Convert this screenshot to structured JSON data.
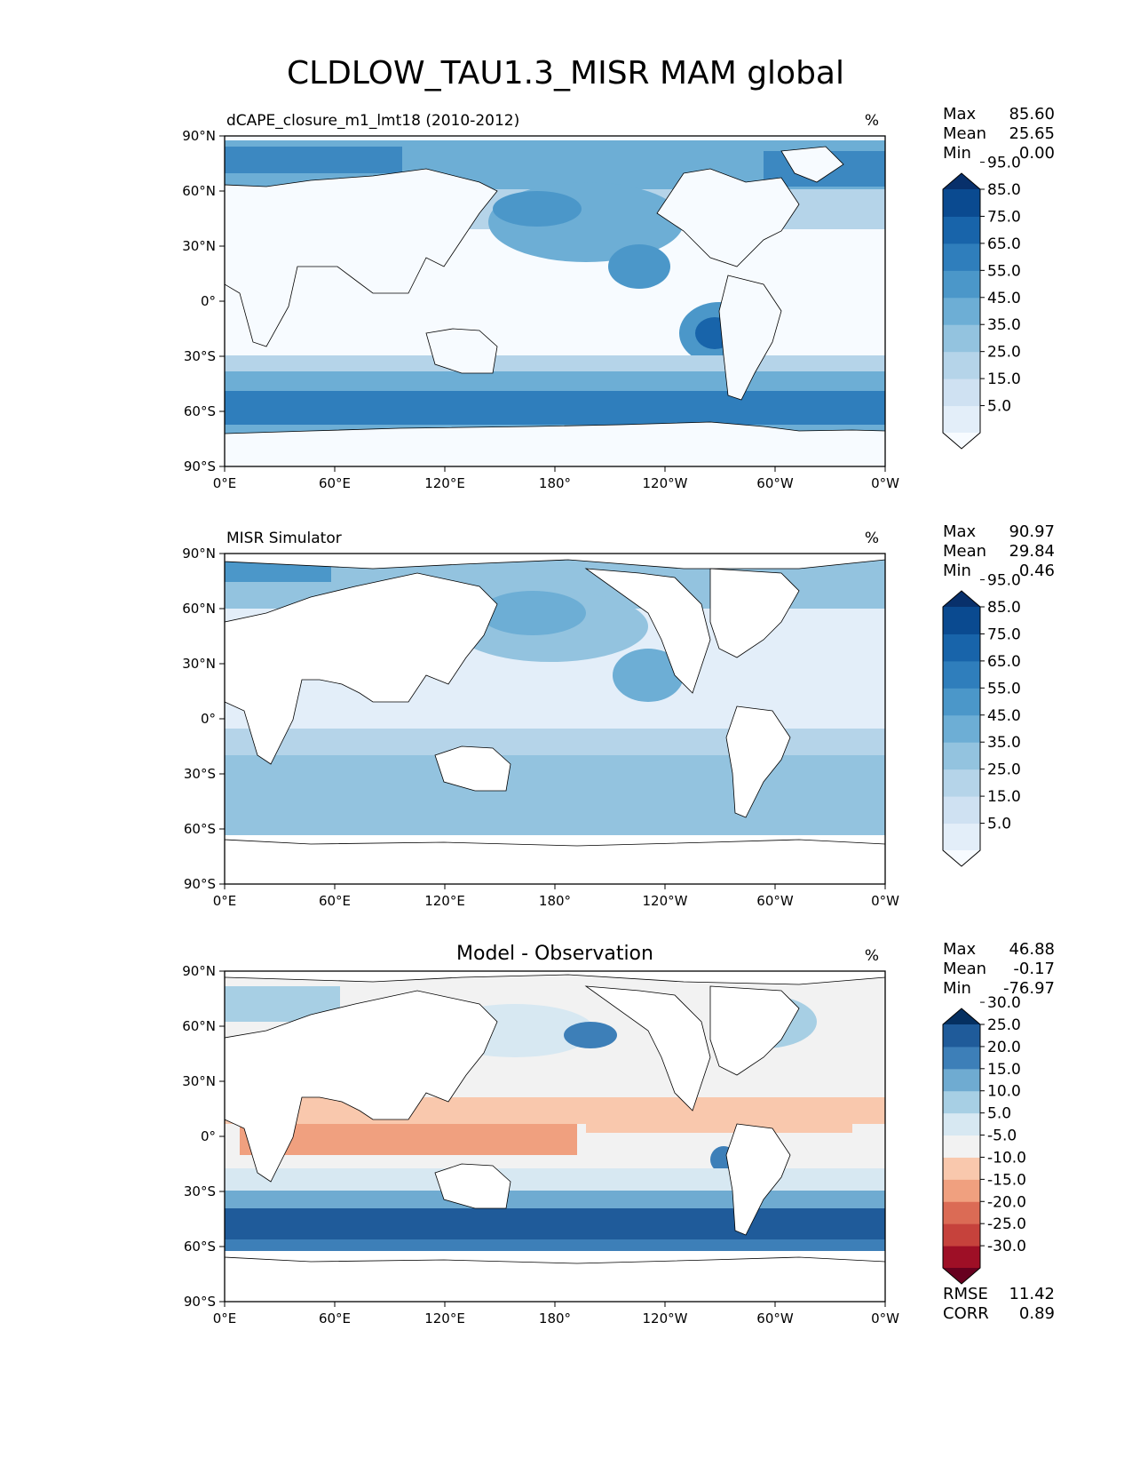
{
  "figure_title": "CLDLOW_TAU1.3_MISR MAM global",
  "chart_data": [
    {
      "type": "heatmap",
      "panel": "model",
      "title_left": "dCAPE_closure_m1_lmt18 (2010-2012)",
      "title_center": "",
      "units": "%",
      "stats": [
        {
          "label": "Max",
          "value": "85.60"
        },
        {
          "label": "Mean",
          "value": "25.65"
        },
        {
          "label": "Min",
          "value": "0.00"
        }
      ],
      "colorbar": {
        "ticks": [
          "5.0",
          "15.0",
          "25.0",
          "35.0",
          "45.0",
          "55.0",
          "65.0",
          "75.0",
          "85.0",
          "95.0"
        ],
        "colors": [
          "#f7fbff",
          "#e3eef9",
          "#cfe1f2",
          "#b5d4e9",
          "#93c3df",
          "#6daed5",
          "#4b97c9",
          "#2f7ebc",
          "#1864aa",
          "#0a4a90",
          "#08306b"
        ]
      },
      "x_ticks": [
        "0°E",
        "60°E",
        "120°E",
        "180°",
        "120°W",
        "60°W",
        "0°W"
      ],
      "y_ticks": [
        "90°N",
        "60°N",
        "30°N",
        "0°",
        "30°S",
        "60°S",
        "90°S"
      ],
      "xlim": [
        0,
        360
      ],
      "ylim": [
        -90,
        90
      ]
    },
    {
      "type": "heatmap",
      "panel": "observation",
      "title_left": "MISR Simulator",
      "title_center": "",
      "units": "%",
      "stats": [
        {
          "label": "Max",
          "value": "90.97"
        },
        {
          "label": "Mean",
          "value": "29.84"
        },
        {
          "label": "Min",
          "value": "0.46"
        }
      ],
      "colorbar": {
        "ticks": [
          "5.0",
          "15.0",
          "25.0",
          "35.0",
          "45.0",
          "55.0",
          "65.0",
          "75.0",
          "85.0",
          "95.0"
        ],
        "colors": [
          "#f7fbff",
          "#e3eef9",
          "#cfe1f2",
          "#b5d4e9",
          "#93c3df",
          "#6daed5",
          "#4b97c9",
          "#2f7ebc",
          "#1864aa",
          "#0a4a90",
          "#08306b"
        ]
      },
      "x_ticks": [
        "0°E",
        "60°E",
        "120°E",
        "180°",
        "120°W",
        "60°W",
        "0°W"
      ],
      "y_ticks": [
        "90°N",
        "60°N",
        "30°N",
        "0°",
        "30°S",
        "60°S",
        "90°S"
      ],
      "xlim": [
        0,
        360
      ],
      "ylim": [
        -90,
        90
      ]
    },
    {
      "type": "heatmap",
      "panel": "difference",
      "title_left": "",
      "title_center": "Model - Observation",
      "units": "%",
      "stats": [
        {
          "label": "Max",
          "value": "46.88"
        },
        {
          "label": "Mean",
          "value": "-0.17"
        },
        {
          "label": "Min",
          "value": "-76.97"
        }
      ],
      "colorbar": {
        "ticks": [
          "-30.0",
          "-25.0",
          "-20.0",
          "-15.0",
          "-10.0",
          "-5.0",
          "5.0",
          "10.0",
          "15.0",
          "20.0",
          "25.0",
          "30.0"
        ],
        "colors": [
          "#67001f",
          "#9e0f26",
          "#c6423c",
          "#db6b55",
          "#f0a07f",
          "#f9c8ad",
          "#f2f2f2",
          "#d7e8f2",
          "#a7cfe4",
          "#6fabd1",
          "#3d7fb8",
          "#1f5b9a",
          "#053061"
        ]
      },
      "bottom_stats": [
        {
          "label": "RMSE",
          "value": "11.42"
        },
        {
          "label": "CORR",
          "value": "0.89"
        }
      ],
      "x_ticks": [
        "0°E",
        "60°E",
        "120°E",
        "180°",
        "120°W",
        "60°W",
        "0°W"
      ],
      "y_ticks": [
        "90°N",
        "60°N",
        "30°N",
        "0°",
        "30°S",
        "60°S",
        "90°S"
      ],
      "xlim": [
        0,
        360
      ],
      "ylim": [
        -90,
        90
      ]
    }
  ]
}
